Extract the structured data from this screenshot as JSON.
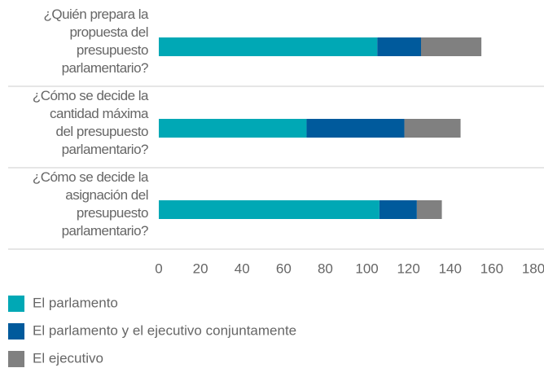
{
  "chart_data": {
    "type": "stacked-bar-horizontal",
    "categories": [
      "¿Quién prepara la\npropuesta del\npresupuesto\nparlamentario?",
      "¿Cómo se decide la\ncantidad máxima\ndel presupuesto\nparlamentario?",
      "¿Cómo se decide la\nasignación del\npresupuesto\nparlamentario?"
    ],
    "series": [
      {
        "name": "El parlamento",
        "color": "#00a8b5",
        "values": [
          105,
          71,
          106
        ]
      },
      {
        "name": "El parlamento y el ejecutivo conjuntamente",
        "color": "#005a9c",
        "values": [
          21,
          47,
          18
        ]
      },
      {
        "name": "El ejecutivo",
        "color": "#808080",
        "values": [
          29,
          27,
          12
        ]
      }
    ],
    "xlim": [
      0,
      180
    ],
    "xticks": [
      0,
      20,
      40,
      60,
      80,
      100,
      120,
      140,
      160,
      180
    ],
    "grid": false,
    "legend": "bottom-left"
  }
}
